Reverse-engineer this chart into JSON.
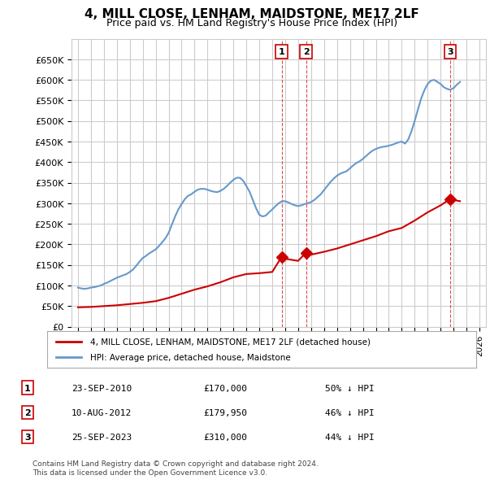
{
  "title": "4, MILL CLOSE, LENHAM, MAIDSTONE, ME17 2LF",
  "subtitle": "Price paid vs. HM Land Registry's House Price Index (HPI)",
  "ylabel": "",
  "ylim": [
    0,
    700000
  ],
  "yticks": [
    0,
    50000,
    100000,
    150000,
    200000,
    250000,
    300000,
    350000,
    400000,
    450000,
    500000,
    550000,
    600000,
    650000
  ],
  "xlim_start": 1994.5,
  "xlim_end": 2026.5,
  "bg_color": "#ffffff",
  "grid_color": "#cccccc",
  "hpi_color": "#6699cc",
  "price_color": "#cc0000",
  "sale_marker_color": "#cc0000",
  "sale_marker_fill": "#cc0000",
  "transactions": [
    {
      "num": 1,
      "date": "23-SEP-2010",
      "price": 170000,
      "pct": "50%",
      "x": 2010.73
    },
    {
      "num": 2,
      "date": "10-AUG-2012",
      "price": 179950,
      "pct": "46%",
      "x": 2012.61
    },
    {
      "num": 3,
      "date": "25-SEP-2023",
      "price": 310000,
      "pct": "44%",
      "x": 2023.73
    }
  ],
  "legend_label_price": "4, MILL CLOSE, LENHAM, MAIDSTONE, ME17 2LF (detached house)",
  "legend_label_hpi": "HPI: Average price, detached house, Maidstone",
  "footer": "Contains HM Land Registry data © Crown copyright and database right 2024.\nThis data is licensed under the Open Government Licence v3.0.",
  "hpi_data_x": [
    1995.0,
    1995.25,
    1995.5,
    1995.75,
    1996.0,
    1996.25,
    1996.5,
    1996.75,
    1997.0,
    1997.25,
    1997.5,
    1997.75,
    1998.0,
    1998.25,
    1998.5,
    1998.75,
    1999.0,
    1999.25,
    1999.5,
    1999.75,
    2000.0,
    2000.25,
    2000.5,
    2000.75,
    2001.0,
    2001.25,
    2001.5,
    2001.75,
    2002.0,
    2002.25,
    2002.5,
    2002.75,
    2003.0,
    2003.25,
    2003.5,
    2003.75,
    2004.0,
    2004.25,
    2004.5,
    2004.75,
    2005.0,
    2005.25,
    2005.5,
    2005.75,
    2006.0,
    2006.25,
    2006.5,
    2006.75,
    2007.0,
    2007.25,
    2007.5,
    2007.75,
    2008.0,
    2008.25,
    2008.5,
    2008.75,
    2009.0,
    2009.25,
    2009.5,
    2009.75,
    2010.0,
    2010.25,
    2010.5,
    2010.75,
    2011.0,
    2011.25,
    2011.5,
    2011.75,
    2012.0,
    2012.25,
    2012.5,
    2012.75,
    2013.0,
    2013.25,
    2013.5,
    2013.75,
    2014.0,
    2014.25,
    2014.5,
    2014.75,
    2015.0,
    2015.25,
    2015.5,
    2015.75,
    2016.0,
    2016.25,
    2016.5,
    2016.75,
    2017.0,
    2017.25,
    2017.5,
    2017.75,
    2018.0,
    2018.25,
    2018.5,
    2018.75,
    2019.0,
    2019.25,
    2019.5,
    2019.75,
    2020.0,
    2020.25,
    2020.5,
    2020.75,
    2021.0,
    2021.25,
    2021.5,
    2021.75,
    2022.0,
    2022.25,
    2022.5,
    2022.75,
    2023.0,
    2023.25,
    2023.5,
    2023.75,
    2024.0,
    2024.25,
    2024.5
  ],
  "hpi_data_y": [
    95000,
    93000,
    92000,
    93000,
    95000,
    96000,
    98000,
    100000,
    104000,
    107000,
    111000,
    115000,
    119000,
    122000,
    125000,
    128000,
    133000,
    139000,
    148000,
    158000,
    167000,
    172000,
    178000,
    183000,
    188000,
    196000,
    205000,
    215000,
    228000,
    248000,
    268000,
    285000,
    298000,
    310000,
    318000,
    322000,
    328000,
    333000,
    335000,
    335000,
    333000,
    330000,
    328000,
    327000,
    330000,
    335000,
    342000,
    350000,
    357000,
    362000,
    362000,
    355000,
    342000,
    328000,
    308000,
    288000,
    272000,
    268000,
    270000,
    278000,
    285000,
    293000,
    300000,
    305000,
    305000,
    302000,
    298000,
    295000,
    293000,
    295000,
    298000,
    300000,
    303000,
    308000,
    315000,
    322000,
    332000,
    342000,
    352000,
    360000,
    367000,
    372000,
    375000,
    378000,
    385000,
    392000,
    398000,
    402000,
    408000,
    415000,
    422000,
    428000,
    432000,
    435000,
    437000,
    438000,
    440000,
    442000,
    445000,
    448000,
    450000,
    445000,
    455000,
    475000,
    500000,
    528000,
    555000,
    575000,
    590000,
    598000,
    600000,
    595000,
    590000,
    582000,
    578000,
    576000,
    580000,
    588000,
    595000
  ],
  "price_data_x": [
    1995.0,
    1996.0,
    1997.0,
    1998.0,
    1999.0,
    2000.0,
    2001.0,
    2002.0,
    2003.0,
    2004.0,
    2005.0,
    2006.0,
    2007.0,
    2008.0,
    2009.0,
    2010.0,
    2010.73,
    2011.0,
    2012.0,
    2012.61,
    2013.0,
    2014.0,
    2015.0,
    2016.0,
    2017.0,
    2018.0,
    2019.0,
    2020.0,
    2021.0,
    2022.0,
    2023.0,
    2023.73,
    2024.0,
    2024.5
  ],
  "price_data_y": [
    47000,
    48000,
    50000,
    52000,
    55000,
    58000,
    62000,
    70000,
    80000,
    90000,
    98000,
    108000,
    120000,
    128000,
    130000,
    133000,
    170000,
    165000,
    160000,
    179950,
    175000,
    182000,
    190000,
    200000,
    210000,
    220000,
    232000,
    240000,
    258000,
    278000,
    295000,
    310000,
    308000,
    305000
  ]
}
